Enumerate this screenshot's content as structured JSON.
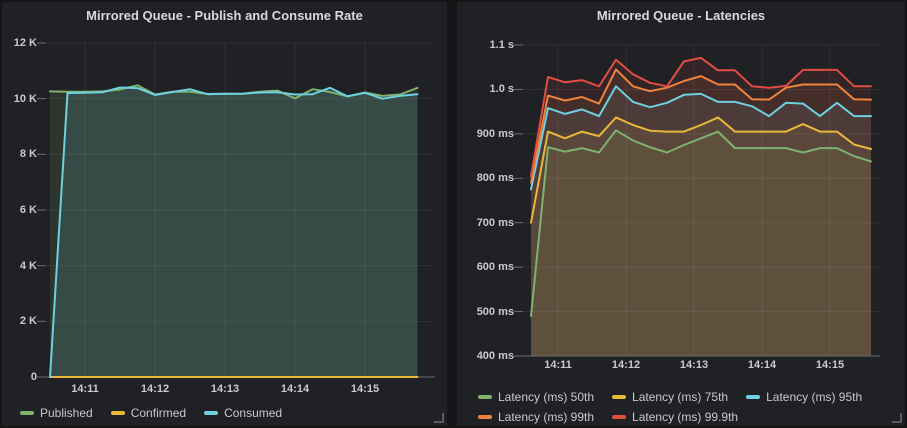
{
  "page": {
    "background": "#141517",
    "panel_background": "#202124"
  },
  "chart_data": [
    {
      "type": "area",
      "title": "Mirrored Queue - Publish and Consume Rate",
      "x": [
        "14:10:45",
        "14:11:00",
        "14:11:15",
        "14:11:30",
        "14:11:45",
        "14:12:00",
        "14:12:15",
        "14:12:30",
        "14:12:45",
        "14:13:00",
        "14:13:15",
        "14:13:30",
        "14:13:45",
        "14:14:00",
        "14:14:15",
        "14:14:30",
        "14:14:45",
        "14:15:00",
        "14:15:15",
        "14:15:30",
        "14:15:45",
        "14:16:00"
      ],
      "x_tick_labels": [
        "14:11",
        "14:12",
        "14:13",
        "14:14",
        "14:15"
      ],
      "ylim": [
        0,
        12000
      ],
      "y_ticks": {
        "values": [
          12000,
          10000,
          8000,
          6000,
          4000,
          2000,
          0
        ],
        "labels": [
          "12 K",
          "10 K",
          "8 K",
          "6 K",
          "4 K",
          "2 K",
          "0"
        ]
      },
      "grid": true,
      "legend_position": "bottom-left",
      "series": [
        {
          "name": "Published",
          "color": "#7EB26D",
          "values": [
            10260,
            10250,
            10250,
            10260,
            10330,
            10480,
            10150,
            10250,
            10250,
            10170,
            10170,
            10180,
            10250,
            10290,
            10010,
            10340,
            10240,
            10080,
            10220,
            10100,
            10150,
            10390
          ]
        },
        {
          "name": "Confirmed",
          "color": "#EAB839",
          "values": [
            0,
            0,
            0,
            0,
            0,
            0,
            0,
            0,
            0,
            0,
            0,
            0,
            0,
            0,
            0,
            0,
            0,
            0,
            0,
            0,
            0,
            0
          ]
        },
        {
          "name": "Consumed",
          "color": "#6ED0E0",
          "values": [
            0,
            10200,
            10210,
            10230,
            10400,
            10380,
            10130,
            10240,
            10340,
            10160,
            10180,
            10180,
            10220,
            10230,
            10150,
            10160,
            10390,
            10080,
            10210,
            10000,
            10100,
            10160
          ]
        }
      ]
    },
    {
      "type": "line",
      "title": "Mirrored Queue - Latencies",
      "unit": "ms",
      "x": [
        "14:10:45",
        "14:11:00",
        "14:11:15",
        "14:11:30",
        "14:11:45",
        "14:12:00",
        "14:12:15",
        "14:12:30",
        "14:12:45",
        "14:13:00",
        "14:13:15",
        "14:13:30",
        "14:13:45",
        "14:14:00",
        "14:14:15",
        "14:14:30",
        "14:14:45",
        "14:15:00",
        "14:15:15",
        "14:15:30",
        "14:15:45"
      ],
      "x_tick_labels": [
        "14:11",
        "14:12",
        "14:13",
        "14:14",
        "14:15"
      ],
      "ylim": [
        400,
        1100
      ],
      "y_ticks": {
        "values": [
          1100,
          1000,
          900,
          800,
          700,
          600,
          500,
          400
        ],
        "labels": [
          "1.1 s",
          "1.0 s",
          "900 ms",
          "800 ms",
          "700 ms",
          "600 ms",
          "500 ms",
          "400 ms"
        ]
      },
      "grid": true,
      "legend_position": "bottom-left",
      "series": [
        {
          "name": "Latency (ms) 50th",
          "color": "#7EB26D",
          "values": [
            490,
            870,
            860,
            868,
            858,
            908,
            885,
            870,
            858,
            875,
            890,
            905,
            868,
            868,
            868,
            868,
            858,
            868,
            868,
            850,
            838
          ]
        },
        {
          "name": "Latency (ms) 75th",
          "color": "#EAB839",
          "values": [
            700,
            905,
            890,
            905,
            895,
            937,
            920,
            907,
            905,
            905,
            920,
            937,
            905,
            905,
            905,
            905,
            922,
            905,
            905,
            876,
            866
          ]
        },
        {
          "name": "Latency (ms) 95th",
          "color": "#6ED0E0",
          "values": [
            775,
            958,
            945,
            955,
            940,
            1007,
            972,
            960,
            970,
            988,
            990,
            972,
            972,
            962,
            940,
            970,
            968,
            940,
            970,
            940,
            940
          ]
        },
        {
          "name": "Latency (ms) 99th",
          "color": "#EF843C",
          "values": [
            790,
            986,
            975,
            983,
            968,
            1045,
            1007,
            996,
            1004,
            1019,
            1030,
            1011,
            1011,
            978,
            977,
            1004,
            1011,
            1011,
            1011,
            978,
            977
          ]
        },
        {
          "name": "Latency (ms) 99.9th",
          "color": "#E24D42",
          "values": [
            805,
            1028,
            1016,
            1021,
            1007,
            1067,
            1034,
            1015,
            1007,
            1063,
            1071,
            1043,
            1043,
            1007,
            1004,
            1008,
            1044,
            1044,
            1044,
            1007,
            1007
          ]
        }
      ]
    }
  ]
}
